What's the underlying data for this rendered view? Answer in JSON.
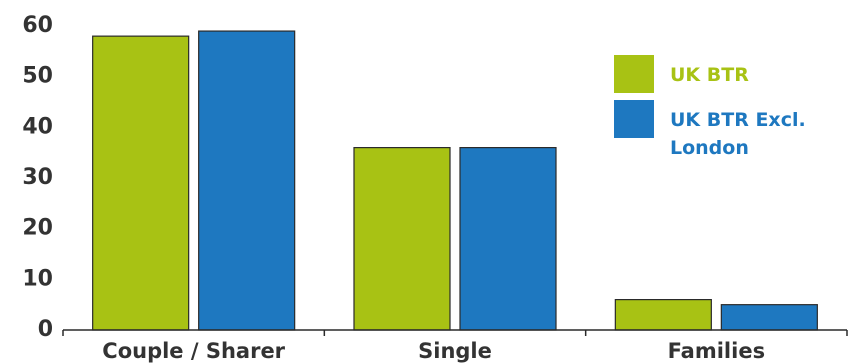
{
  "chart_data": {
    "type": "bar",
    "categories": [
      "Couple / Sharer",
      "Single",
      "Families"
    ],
    "series": [
      {
        "name": "UK BTR",
        "values": [
          58,
          36,
          6
        ],
        "color": "#a8c214"
      },
      {
        "name": "UK BTR Excl. London",
        "values": [
          59,
          36,
          5
        ],
        "color": "#1e78c0"
      }
    ],
    "y_ticks": [
      "0",
      "10",
      "20",
      "30",
      "40",
      "50",
      "60"
    ],
    "ylim": [
      0,
      60
    ],
    "grid": false,
    "legend_position": "top-right"
  }
}
